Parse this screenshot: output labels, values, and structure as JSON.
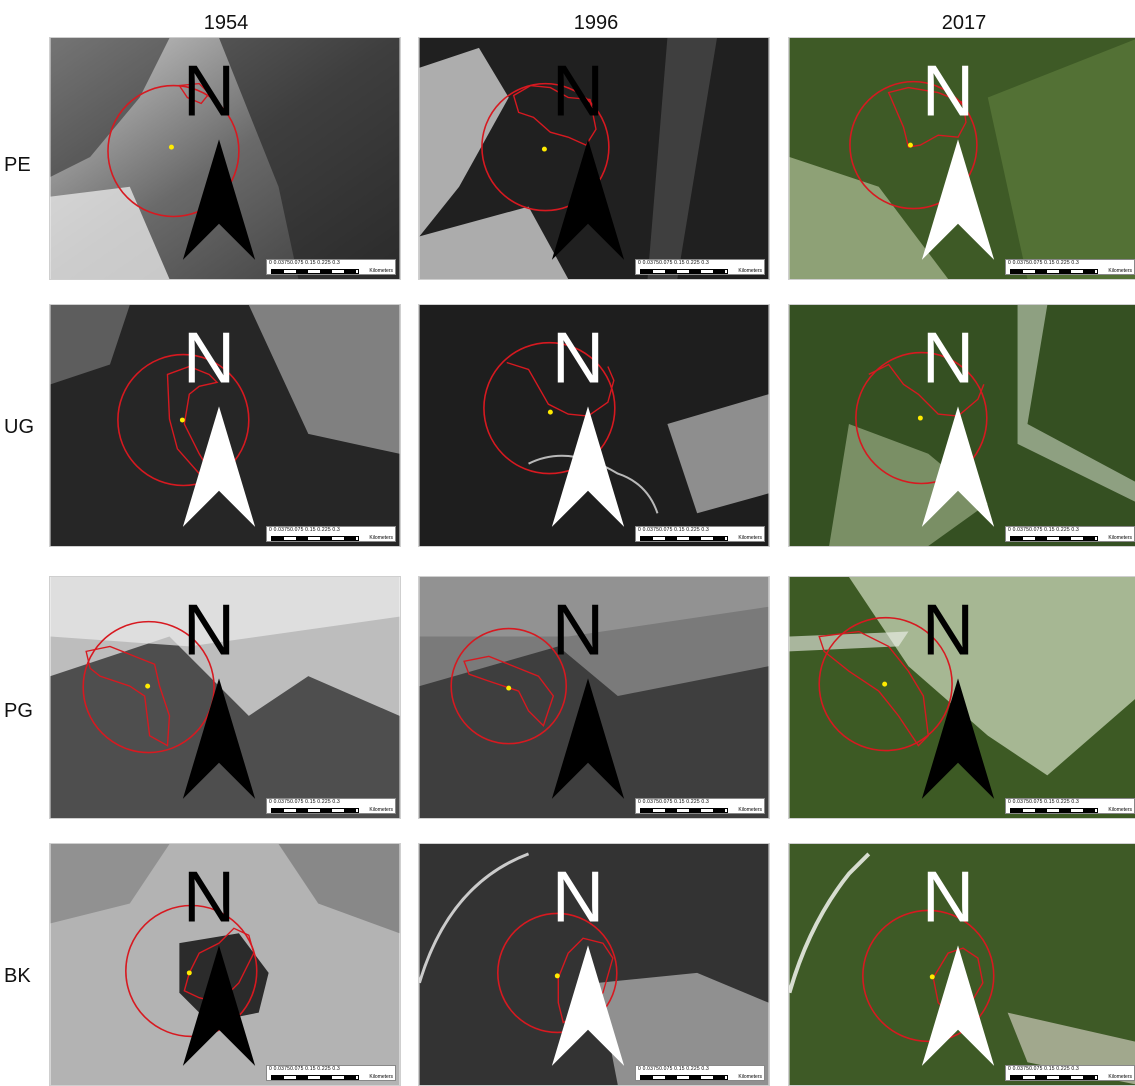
{
  "columns": [
    "1954",
    "1996",
    "2017"
  ],
  "rows": [
    "PE",
    "UG",
    "PG",
    "BK"
  ],
  "scale_bar": {
    "ticks": "0  0.03750.075    0.15    0.225    0.3",
    "unit": "Kilometers"
  },
  "north_arrow_label": "N",
  "colors": {
    "outline": "#d71920",
    "site_point": "#ffeb00",
    "bw_dark": "#1c1c1c",
    "bw_light": "#d9d9d9",
    "color_forest": "#3e5a26",
    "color_meadow": "#cfdcb8"
  }
}
